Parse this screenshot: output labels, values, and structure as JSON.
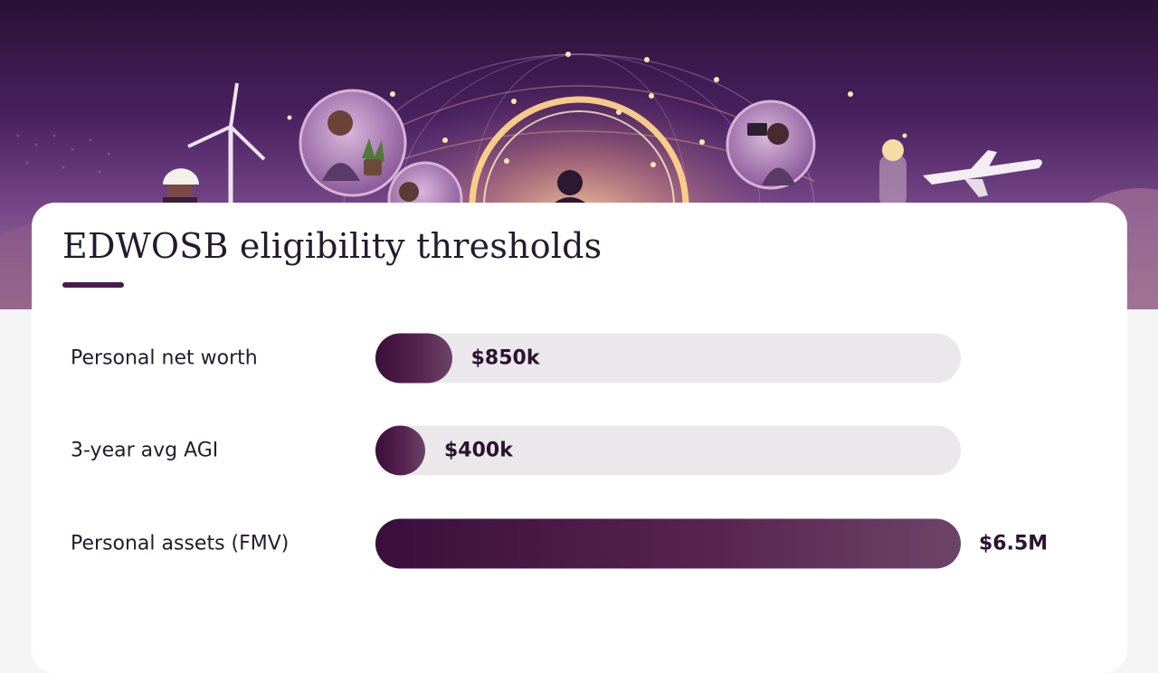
{
  "card": {
    "title": "EDWOSB eligibility thresholds"
  },
  "chart_data": {
    "type": "bar",
    "orientation": "horizontal",
    "title": "EDWOSB eligibility thresholds",
    "categories": [
      "Personal net worth",
      "3-year avg AGI",
      "Personal assets (FMV)"
    ],
    "values": [
      850000,
      400000,
      6500000
    ],
    "value_labels": [
      "$850k",
      "$400k",
      "$6.5M"
    ],
    "xlim": [
      0,
      6500000
    ],
    "grid": false,
    "bar_color": "#4b1b4b",
    "track_color": "#ebe8ec"
  },
  "colors": {
    "accent": "#4b1b4b",
    "hero_top": "#2a1035",
    "hero_bottom": "#a7748e"
  }
}
